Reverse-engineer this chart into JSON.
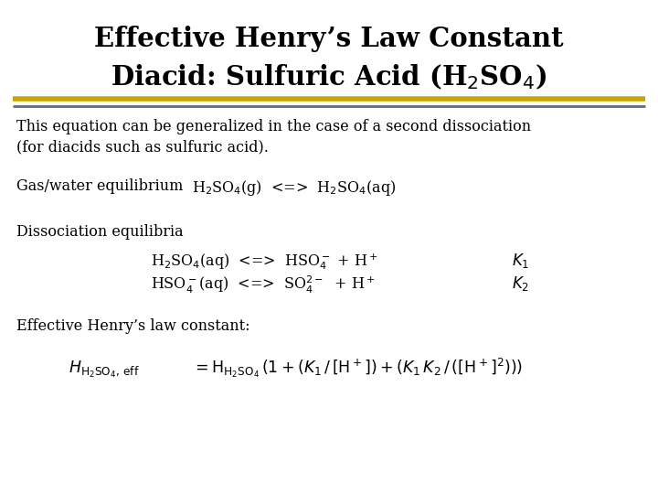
{
  "title_line1": "Effective Henry’s Law Constant",
  "title_line2": "Diacid: Sulfuric Acid (H$_2$SO$_4$)",
  "background_color": "#ffffff",
  "title_color": "#000000",
  "text_color": "#000000",
  "separator_color_gold": "#c8a800",
  "separator_color_blue": "#5a6a8a",
  "body_text1": "This equation can be generalized in the case of a second dissociation",
  "body_text2": "(for diacids such as sulfuric acid).",
  "gas_label": "Gas/water equilibrium",
  "diss_label": "Dissociation equilibria",
  "eff_label": "Effective Henry’s law constant:",
  "figsize": [
    7.2,
    5.4
  ],
  "dpi": 100
}
